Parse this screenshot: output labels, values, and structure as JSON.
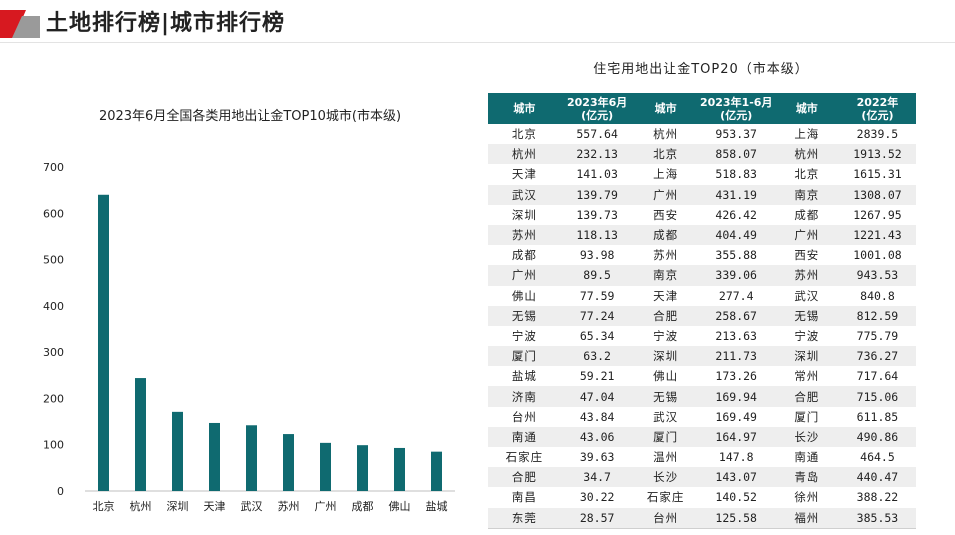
{
  "page": {
    "title": "土地排行榜|城市排行榜",
    "logo_colors": [
      "#d71920",
      "#9a9a9a"
    ]
  },
  "chart_data": {
    "type": "bar",
    "title": "2023年6月全国各类用地出让金TOP10城市(市本级)",
    "categories": [
      "北京",
      "杭州",
      "深圳",
      "天津",
      "武汉",
      "苏州",
      "广州",
      "成都",
      "佛山",
      "盐城"
    ],
    "values": [
      640,
      244,
      171,
      147,
      142,
      123,
      104,
      99,
      93,
      85
    ],
    "xlabel": "",
    "ylabel": "",
    "ylim": [
      0,
      700
    ],
    "yticks": [
      0,
      100,
      200,
      300,
      400,
      500,
      600,
      700
    ],
    "grid": false,
    "legend": false,
    "bar_color": "#0f6a70"
  },
  "table": {
    "title": "住宅用地出让金TOP20（市本级）",
    "header_color": "#0f6a70",
    "headers": [
      {
        "l1": "城市",
        "l2": ""
      },
      {
        "l1": "2023年6月",
        "l2": "(亿元)"
      },
      {
        "l1": "城市",
        "l2": ""
      },
      {
        "l1": "2023年1-6月",
        "l2": "(亿元)"
      },
      {
        "l1": "城市",
        "l2": ""
      },
      {
        "l1": "2022年",
        "l2": "(亿元)"
      }
    ],
    "rows": [
      [
        "北京",
        "557.64",
        "杭州",
        "953.37",
        "上海",
        "2839.5"
      ],
      [
        "杭州",
        "232.13",
        "北京",
        "858.07",
        "杭州",
        "1913.52"
      ],
      [
        "天津",
        "141.03",
        "上海",
        "518.83",
        "北京",
        "1615.31"
      ],
      [
        "武汉",
        "139.79",
        "广州",
        "431.19",
        "南京",
        "1308.07"
      ],
      [
        "深圳",
        "139.73",
        "西安",
        "426.42",
        "成都",
        "1267.95"
      ],
      [
        "苏州",
        "118.13",
        "成都",
        "404.49",
        "广州",
        "1221.43"
      ],
      [
        "成都",
        "93.98",
        "苏州",
        "355.88",
        "西安",
        "1001.08"
      ],
      [
        "广州",
        "89.5",
        "南京",
        "339.06",
        "苏州",
        "943.53"
      ],
      [
        "佛山",
        "77.59",
        "天津",
        "277.4",
        "武汉",
        "840.8"
      ],
      [
        "无锡",
        "77.24",
        "合肥",
        "258.67",
        "无锡",
        "812.59"
      ],
      [
        "宁波",
        "65.34",
        "宁波",
        "213.63",
        "宁波",
        "775.79"
      ],
      [
        "厦门",
        "63.2",
        "深圳",
        "211.73",
        "深圳",
        "736.27"
      ],
      [
        "盐城",
        "59.21",
        "佛山",
        "173.26",
        "常州",
        "717.64"
      ],
      [
        "济南",
        "47.04",
        "无锡",
        "169.94",
        "合肥",
        "715.06"
      ],
      [
        "台州",
        "43.84",
        "武汉",
        "169.49",
        "厦门",
        "611.85"
      ],
      [
        "南通",
        "43.06",
        "厦门",
        "164.97",
        "长沙",
        "490.86"
      ],
      [
        "石家庄",
        "39.63",
        "温州",
        "147.8",
        "南通",
        "464.5"
      ],
      [
        "合肥",
        "34.7",
        "长沙",
        "143.07",
        "青岛",
        "440.47"
      ],
      [
        "南昌",
        "30.22",
        "石家庄",
        "140.52",
        "徐州",
        "388.22"
      ],
      [
        "东莞",
        "28.57",
        "台州",
        "125.58",
        "福州",
        "385.53"
      ]
    ]
  }
}
